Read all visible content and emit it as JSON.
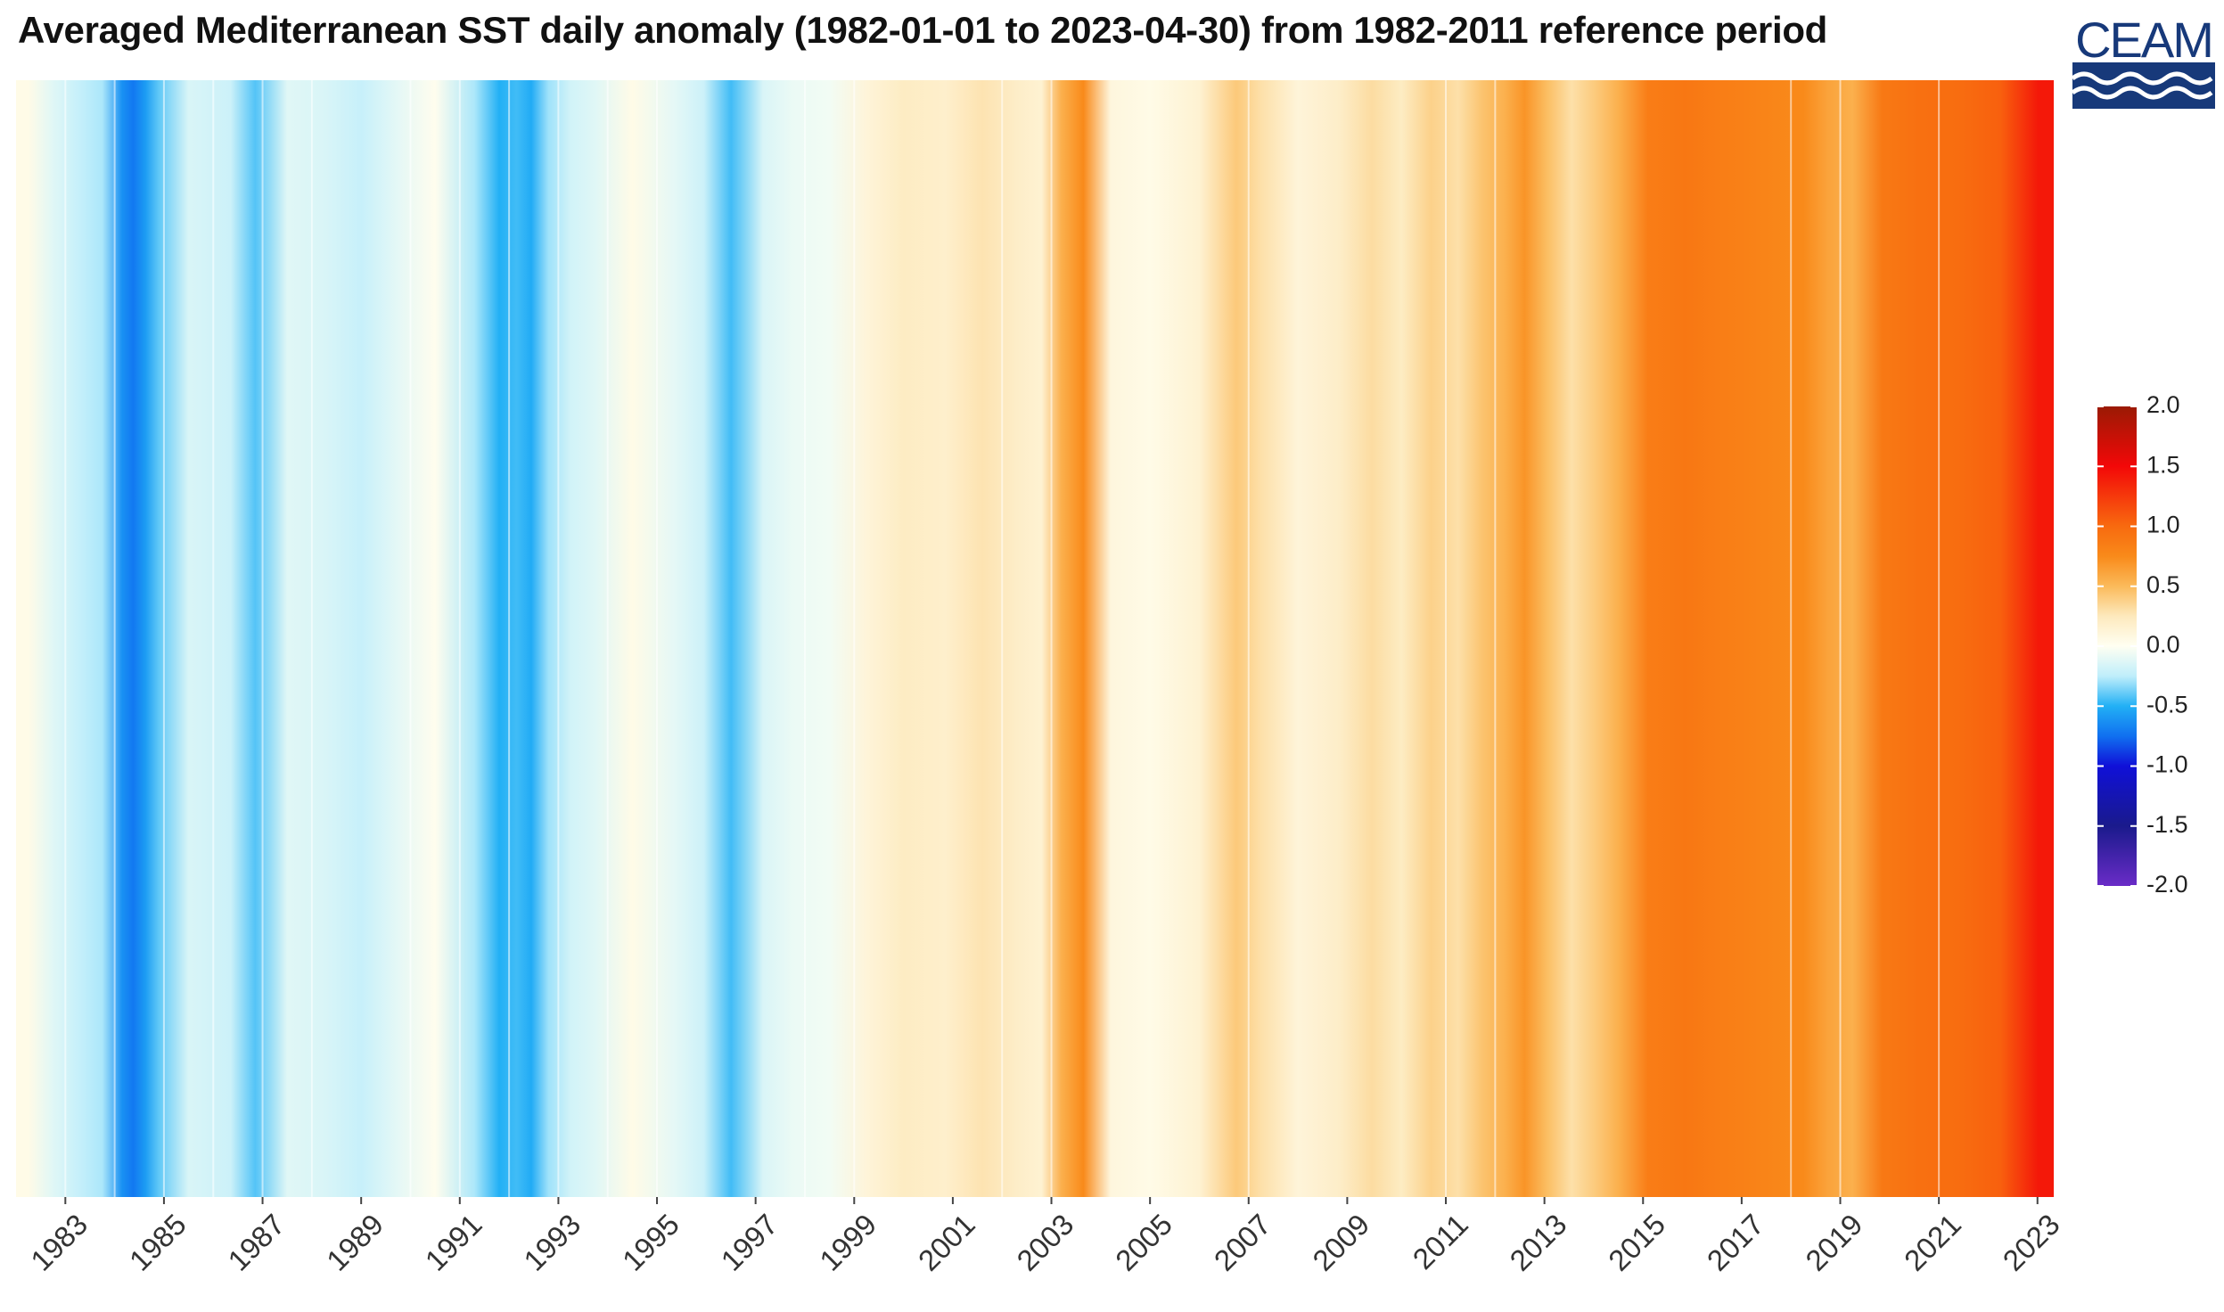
{
  "title": "Averaged Mediterranean SST daily anomaly (1982-01-01 to 2023-04-30) from 1982-2011 reference period",
  "logo": {
    "text": "CEAM",
    "color": "#17397a"
  },
  "chart_data": {
    "type": "heatmap",
    "title": "Averaged Mediterranean SST daily anomaly (1982-01-01 to 2023-04-30) from 1982-2011 reference period",
    "xlabel": "",
    "ylabel": "",
    "x_range": [
      1982.0,
      2023.33
    ],
    "x_tick_labels": [
      "1983",
      "1985",
      "1987",
      "1989",
      "1991",
      "1993",
      "1995",
      "1997",
      "1999",
      "2001",
      "2003",
      "2005",
      "2007",
      "2009",
      "2011",
      "2013",
      "2015",
      "2017",
      "2019",
      "2021",
      "2023"
    ],
    "x_tick_values": [
      1983,
      1985,
      1987,
      1989,
      1991,
      1993,
      1995,
      1997,
      1999,
      2001,
      2003,
      2005,
      2007,
      2009,
      2011,
      2013,
      2015,
      2017,
      2019,
      2021,
      2023
    ],
    "anomaly_by_year": [
      {
        "start": 1982.0,
        "end": 1982.5,
        "value": 0.05
      },
      {
        "start": 1982.5,
        "end": 1983.0,
        "value": -0.12
      },
      {
        "start": 1983.0,
        "end": 1983.5,
        "value": -0.22
      },
      {
        "start": 1983.5,
        "end": 1984.0,
        "value": -0.28
      },
      {
        "start": 1984.0,
        "end": 1984.3,
        "value": -0.62
      },
      {
        "start": 1984.3,
        "end": 1984.45,
        "value": -0.72
      },
      {
        "start": 1984.45,
        "end": 1984.8,
        "value": -0.58
      },
      {
        "start": 1984.8,
        "end": 1985.0,
        "value": -0.4
      },
      {
        "start": 1985.0,
        "end": 1986.0,
        "value": -0.15
      },
      {
        "start": 1986.0,
        "end": 1986.7,
        "value": -0.2
      },
      {
        "start": 1986.7,
        "end": 1987.0,
        "value": -0.42
      },
      {
        "start": 1987.0,
        "end": 1988.0,
        "value": -0.12
      },
      {
        "start": 1988.0,
        "end": 1988.5,
        "value": -0.15
      },
      {
        "start": 1988.5,
        "end": 1989.5,
        "value": -0.22
      },
      {
        "start": 1989.5,
        "end": 1990.0,
        "value": -0.1
      },
      {
        "start": 1990.0,
        "end": 1991.0,
        "value": 0.02
      },
      {
        "start": 1991.0,
        "end": 1991.6,
        "value": -0.28
      },
      {
        "start": 1991.6,
        "end": 1992.0,
        "value": -0.5
      },
      {
        "start": 1992.0,
        "end": 1992.3,
        "value": -0.45
      },
      {
        "start": 1992.3,
        "end": 1992.6,
        "value": -0.52
      },
      {
        "start": 1992.6,
        "end": 1993.0,
        "value": -0.3
      },
      {
        "start": 1993.0,
        "end": 1993.5,
        "value": -0.18
      },
      {
        "start": 1993.5,
        "end": 1994.0,
        "value": -0.12
      },
      {
        "start": 1994.0,
        "end": 1995.0,
        "value": 0.05
      },
      {
        "start": 1995.0,
        "end": 1995.7,
        "value": -0.1
      },
      {
        "start": 1995.7,
        "end": 1996.2,
        "value": -0.2
      },
      {
        "start": 1996.2,
        "end": 1996.8,
        "value": -0.45
      },
      {
        "start": 1996.8,
        "end": 1997.5,
        "value": -0.15
      },
      {
        "start": 1997.5,
        "end": 1998.0,
        "value": -0.08
      },
      {
        "start": 1998.0,
        "end": 1999.0,
        "value": -0.05
      },
      {
        "start": 1999.0,
        "end": 1999.5,
        "value": 0.12
      },
      {
        "start": 1999.5,
        "end": 2000.5,
        "value": 0.22
      },
      {
        "start": 2000.5,
        "end": 2001.2,
        "value": 0.18
      },
      {
        "start": 2001.2,
        "end": 2002.0,
        "value": 0.28
      },
      {
        "start": 2002.0,
        "end": 2002.6,
        "value": 0.2
      },
      {
        "start": 2002.6,
        "end": 2003.0,
        "value": 0.15
      },
      {
        "start": 2003.0,
        "end": 2003.4,
        "value": 0.55
      },
      {
        "start": 2003.4,
        "end": 2003.9,
        "value": 0.75
      },
      {
        "start": 2003.9,
        "end": 2004.5,
        "value": 0.1
      },
      {
        "start": 2004.5,
        "end": 2005.5,
        "value": 0.05
      },
      {
        "start": 2005.5,
        "end": 2006.5,
        "value": 0.15
      },
      {
        "start": 2006.5,
        "end": 2007.0,
        "value": 0.42
      },
      {
        "start": 2007.0,
        "end": 2007.5,
        "value": 0.3
      },
      {
        "start": 2007.5,
        "end": 2008.5,
        "value": 0.12
      },
      {
        "start": 2008.5,
        "end": 2009.2,
        "value": 0.2
      },
      {
        "start": 2009.2,
        "end": 2009.8,
        "value": 0.32
      },
      {
        "start": 2009.8,
        "end": 2010.4,
        "value": 0.22
      },
      {
        "start": 2010.4,
        "end": 2011.0,
        "value": 0.38
      },
      {
        "start": 2011.0,
        "end": 2011.5,
        "value": 0.3
      },
      {
        "start": 2011.5,
        "end": 2012.0,
        "value": 0.45
      },
      {
        "start": 2012.0,
        "end": 2012.4,
        "value": 0.55
      },
      {
        "start": 2012.4,
        "end": 2012.8,
        "value": 0.7
      },
      {
        "start": 2012.8,
        "end": 2013.3,
        "value": 0.48
      },
      {
        "start": 2013.3,
        "end": 2013.8,
        "value": 0.3
      },
      {
        "start": 2013.8,
        "end": 2014.3,
        "value": 0.42
      },
      {
        "start": 2014.3,
        "end": 2014.7,
        "value": 0.55
      },
      {
        "start": 2014.7,
        "end": 2015.5,
        "value": 0.85
      },
      {
        "start": 2015.5,
        "end": 2016.2,
        "value": 0.9
      },
      {
        "start": 2016.2,
        "end": 2016.8,
        "value": 0.85
      },
      {
        "start": 2016.8,
        "end": 2017.4,
        "value": 0.82
      },
      {
        "start": 2017.4,
        "end": 2018.0,
        "value": 0.78
      },
      {
        "start": 2018.0,
        "end": 2018.5,
        "value": 0.75
      },
      {
        "start": 2018.5,
        "end": 2019.0,
        "value": 0.62
      },
      {
        "start": 2019.0,
        "end": 2019.5,
        "value": 0.55
      },
      {
        "start": 2019.5,
        "end": 2020.2,
        "value": 0.88
      },
      {
        "start": 2020.2,
        "end": 2021.0,
        "value": 0.95
      },
      {
        "start": 2021.0,
        "end": 2021.8,
        "value": 0.98
      },
      {
        "start": 2021.8,
        "end": 2022.7,
        "value": 1.05
      },
      {
        "start": 2022.7,
        "end": 2023.33,
        "value": 1.42
      }
    ],
    "colorbar": {
      "min": -2.0,
      "max": 2.0,
      "tick_labels": [
        "2.0",
        "1.5",
        "1.0",
        "0.5",
        "0.0",
        "-0.5",
        "-1.0",
        "-1.5",
        "-2.0"
      ],
      "tick_values": [
        2.0,
        1.5,
        1.0,
        0.5,
        0.0,
        -0.5,
        -1.0,
        -1.5,
        -2.0
      ],
      "stops": [
        {
          "value": -2.0,
          "color": "#6a2cc7"
        },
        {
          "value": -1.5,
          "color": "#1a1a8c"
        },
        {
          "value": -1.0,
          "color": "#1010d8"
        },
        {
          "value": -0.75,
          "color": "#1070f0"
        },
        {
          "value": -0.5,
          "color": "#22b0f5"
        },
        {
          "value": -0.25,
          "color": "#bfeefb"
        },
        {
          "value": 0.0,
          "color": "#fffff2"
        },
        {
          "value": 0.25,
          "color": "#fde9bd"
        },
        {
          "value": 0.5,
          "color": "#fbba5a"
        },
        {
          "value": 0.75,
          "color": "#f98a1a"
        },
        {
          "value": 1.0,
          "color": "#f86a0f"
        },
        {
          "value": 1.5,
          "color": "#f30808"
        },
        {
          "value": 2.0,
          "color": "#9a1a04"
        }
      ]
    }
  }
}
